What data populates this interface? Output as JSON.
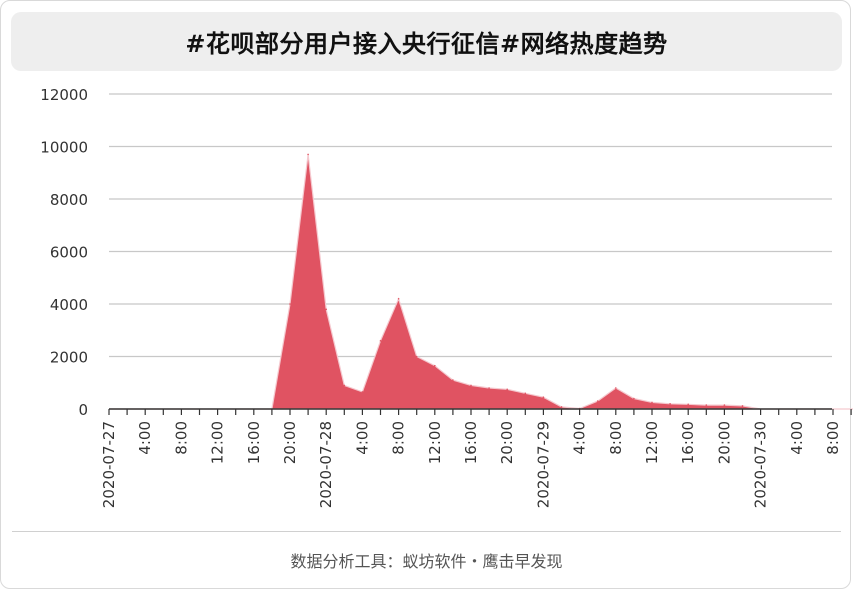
{
  "title": "#花呗部分用户接入央行征信#网络热度趋势",
  "footer": "数据分析工具：蚁坊软件・鹰击早发现",
  "colors": {
    "area_fill": "#e05362",
    "area_stroke": "#f5c9cf",
    "grid": "#c8c8c8",
    "axis": "#333333"
  },
  "chart_data": {
    "type": "area",
    "title": "#花呗部分用户接入央行征信#网络热度趋势",
    "xlabel": "",
    "ylabel": "",
    "ylim": [
      0,
      12000
    ],
    "yticks": [
      0,
      2000,
      4000,
      6000,
      8000,
      10000,
      12000
    ],
    "grid": true,
    "x_interval_hours": 2,
    "x_start": "2020-07-27 0:00",
    "xtick_labels": [
      "2020-07-27",
      "4:00",
      "8:00",
      "12:00",
      "16:00",
      "20:00",
      "2020-07-28",
      "4:00",
      "8:00",
      "12:00",
      "16:00",
      "20:00",
      "2020-07-29",
      "4:00",
      "8:00",
      "12:00",
      "16:00",
      "20:00",
      "2020-07-30",
      "4:00",
      "8:00"
    ],
    "values": [
      0,
      0,
      0,
      0,
      0,
      0,
      0,
      0,
      0,
      0,
      4000,
      9700,
      3800,
      900,
      650,
      2600,
      4200,
      2000,
      1650,
      1100,
      900,
      800,
      750,
      600,
      450,
      80,
      20,
      300,
      800,
      400,
      250,
      200,
      180,
      150,
      150,
      120,
      0,
      0,
      0,
      0,
      0,
      0,
      0
    ]
  }
}
